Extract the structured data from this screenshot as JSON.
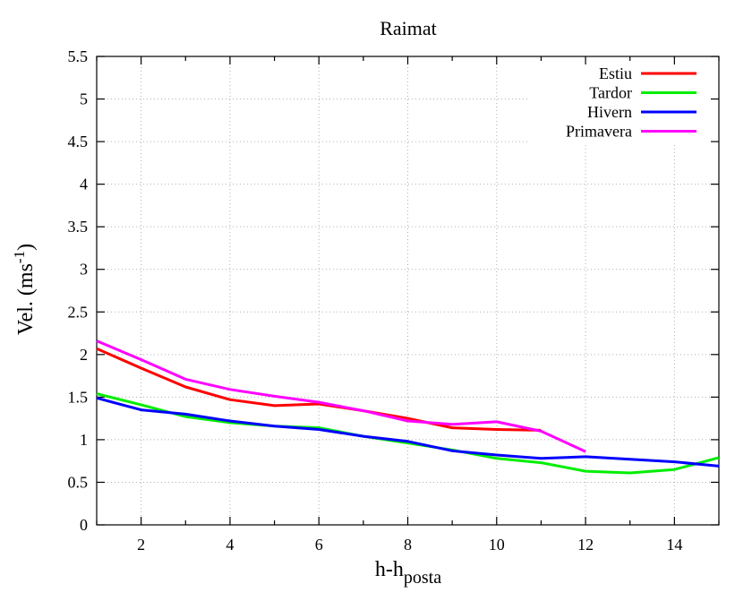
{
  "chart_data": {
    "type": "line",
    "title": "Raimat",
    "xlabel": "h-h",
    "xlabel_subscript": "posta",
    "ylabel": "Vel. (ms",
    "ylabel_superscript": "-1",
    "ylabel_suffix": ")",
    "xlim": [
      1,
      15
    ],
    "ylim": [
      0,
      5.5
    ],
    "xticks": [
      2,
      4,
      6,
      8,
      10,
      12,
      14
    ],
    "yticks": [
      0,
      0.5,
      1,
      1.5,
      2,
      2.5,
      3,
      3.5,
      4,
      4.5,
      5,
      5.5
    ],
    "grid": true,
    "legend_position": "top-right",
    "series": [
      {
        "name": "Estiu",
        "color": "#ff0000",
        "x": [
          1,
          2,
          3,
          4,
          5,
          6,
          7,
          8,
          9,
          10,
          11
        ],
        "y": [
          2.07,
          1.84,
          1.62,
          1.47,
          1.4,
          1.42,
          1.34,
          1.25,
          1.14,
          1.12,
          1.11
        ]
      },
      {
        "name": "Tardor",
        "color": "#00ee00",
        "x": [
          1,
          2,
          3,
          4,
          5,
          6,
          7,
          8,
          9,
          10,
          11,
          12,
          13,
          14,
          15
        ],
        "y": [
          1.54,
          1.41,
          1.27,
          1.2,
          1.16,
          1.14,
          1.04,
          0.96,
          0.88,
          0.78,
          0.73,
          0.63,
          0.61,
          0.65,
          0.79
        ]
      },
      {
        "name": "Hivern",
        "color": "#0000ff",
        "x": [
          1,
          2,
          3,
          4,
          5,
          6,
          7,
          8,
          9,
          10,
          11,
          12,
          13,
          14,
          15
        ],
        "y": [
          1.49,
          1.35,
          1.3,
          1.22,
          1.16,
          1.12,
          1.04,
          0.98,
          0.87,
          0.82,
          0.78,
          0.8,
          0.77,
          0.74,
          0.69
        ]
      },
      {
        "name": "Primavera",
        "color": "#ff00ff",
        "x": [
          1,
          2,
          3,
          4,
          5,
          6,
          7,
          8,
          9,
          10,
          11,
          12
        ],
        "y": [
          2.16,
          1.94,
          1.71,
          1.59,
          1.51,
          1.44,
          1.34,
          1.22,
          1.18,
          1.21,
          1.1,
          0.86
        ]
      }
    ]
  }
}
